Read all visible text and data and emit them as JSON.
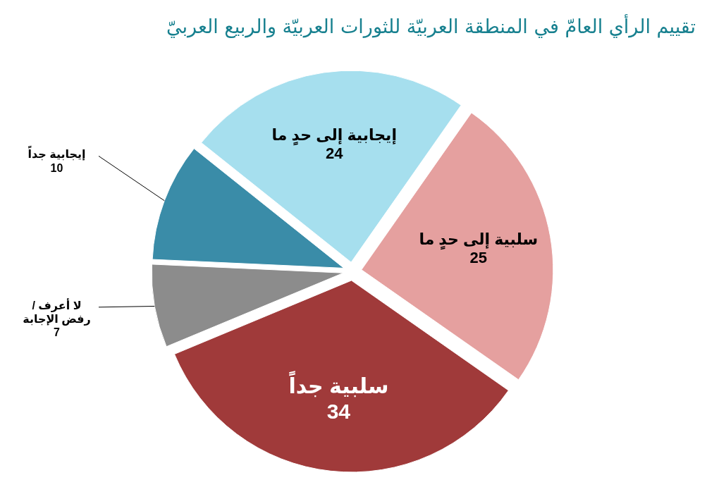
{
  "chart_data": {
    "type": "pie",
    "title": "تقييم الرأي العامّ في المنطقة العربيّة للثورات العربيّة والربيع العربيّ",
    "categories": [
      "إيجابية إلى حدٍ ما",
      "إيجابية جداً",
      "لا أعرف / رفض الإجابة",
      "سلبية جداً",
      "سلبية إلى حدٍ ما"
    ],
    "values": [
      24,
      10,
      7,
      34,
      25
    ],
    "colors": [
      "#a6dfee",
      "#3a8ca8",
      "#8c8c8c",
      "#a03a3a",
      "#e5a09f"
    ],
    "data_labels": true
  }
}
